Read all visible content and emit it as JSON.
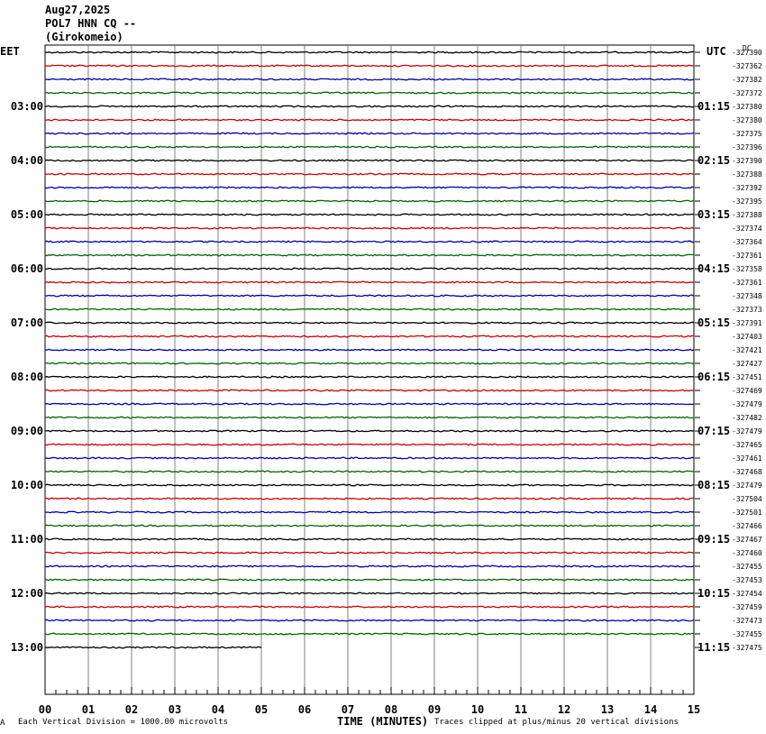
{
  "header": {
    "date": "Aug27,2025",
    "station": "POL7 HNN CQ --",
    "location": "(Girokomeio)"
  },
  "footer": {
    "xlabel": "TIME (MINUTES)",
    "scale_note": "Each Vertical Division = 1000.00 microvolts",
    "clip_note": "Traces clipped at plus/minus 20 vertical divisions",
    "corner_mark": "A"
  },
  "chart_data": {
    "type": "line",
    "title": "",
    "left_timezone": "EET",
    "right_timezone": "UTC",
    "right_unit": "DC",
    "x_ticks": [
      "00",
      "01",
      "02",
      "03",
      "04",
      "05",
      "06",
      "07",
      "08",
      "09",
      "10",
      "11",
      "12",
      "13",
      "14",
      "15"
    ],
    "xlim": [
      0,
      15
    ],
    "left_hour_labels": [
      "03:00",
      "04:00",
      "05:00",
      "06:00",
      "07:00",
      "08:00",
      "09:00",
      "10:00",
      "11:00",
      "12:00",
      "13:00"
    ],
    "right_hour_labels": [
      "01:15",
      "02:15",
      "03:15",
      "04:15",
      "05:15",
      "06:15",
      "07:15",
      "08:15",
      "09:15",
      "10:15",
      "11:15"
    ],
    "trace_colors": [
      "#000000",
      "#cc0000",
      "#0000aa",
      "#006600"
    ],
    "dc_offsets": [
      -327390,
      -327362,
      -327382,
      -327372,
      -327380,
      -327380,
      -327375,
      -327396,
      -327390,
      -327388,
      -327392,
      -327395,
      -327388,
      -327374,
      -327364,
      -327361,
      -327358,
      -327361,
      -327348,
      -327373,
      -327391,
      -327403,
      -327421,
      -327427,
      -327451,
      -327469,
      -327479,
      -327482,
      -327479,
      -327465,
      -327461,
      -327468,
      -327479,
      -327504,
      -327501,
      -327466,
      -327467,
      -327460,
      -327455,
      -327453,
      -327454,
      -327459,
      -327473,
      -327455,
      -327475
    ],
    "last_trace_end_minute": 5
  }
}
